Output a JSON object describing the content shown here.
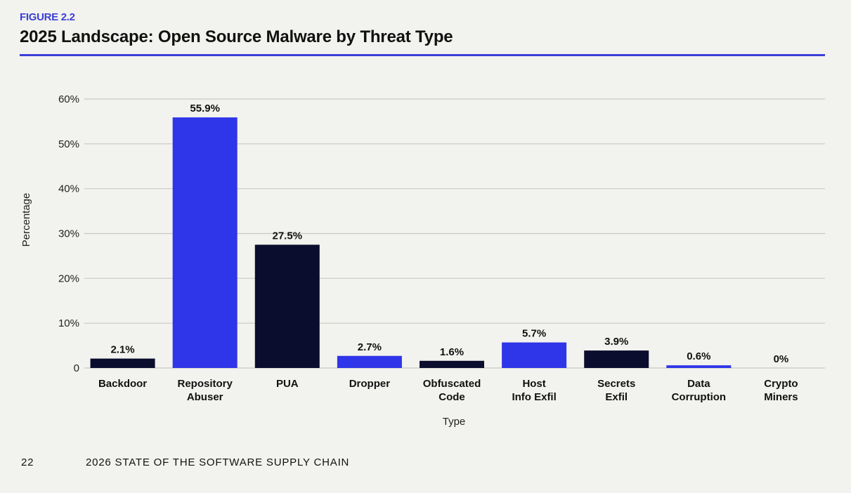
{
  "header": {
    "figure_label": "FIGURE 2.2",
    "title": "2025 Landscape: Open Source Malware by Threat Type"
  },
  "chart_data": {
    "type": "bar",
    "xlabel": "Type",
    "ylabel": "Percentage",
    "ylim": [
      0,
      60
    ],
    "yticks": [
      0,
      10,
      20,
      30,
      40,
      50,
      60
    ],
    "ytick_labels": [
      "0",
      "10%",
      "20%",
      "30%",
      "40%",
      "50%",
      "60%"
    ],
    "grid": true,
    "categories": [
      [
        "Backdoor"
      ],
      [
        "Repository",
        "Abuser"
      ],
      [
        "PUA"
      ],
      [
        "Dropper"
      ],
      [
        "Obfuscated",
        "Code"
      ],
      [
        "Host",
        "Info Exfil"
      ],
      [
        "Secrets",
        "Exfil"
      ],
      [
        "Data",
        "Corruption"
      ],
      [
        "Crypto",
        "Miners"
      ]
    ],
    "values": [
      2.1,
      55.9,
      27.5,
      2.7,
      1.6,
      5.7,
      3.9,
      0.6,
      0
    ],
    "data_labels": [
      "2.1%",
      "55.9%",
      "27.5%",
      "2.7%",
      "1.6%",
      "5.7%",
      "3.9%",
      "0.6%",
      "0%"
    ],
    "bar_colors": [
      "#0b0d2e",
      "#2f35e8",
      "#0b0d2e",
      "#2f35e8",
      "#0b0d2e",
      "#2f35e8",
      "#0b0d2e",
      "#2f35e8",
      "#0b0d2e"
    ]
  },
  "footer": {
    "page_number": "22",
    "publication": "2026 STATE OF THE SOFTWARE SUPPLY CHAIN"
  }
}
